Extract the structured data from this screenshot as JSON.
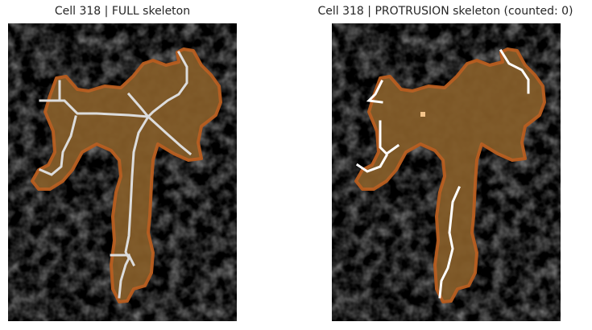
{
  "panels": [
    {
      "title": "Cell 318 | FULL skeleton",
      "skeleton_type": "full"
    },
    {
      "title": "Cell 318 | PROTRUSION skeleton (counted: 0)",
      "skeleton_type": "protrusion",
      "counted": 0
    }
  ],
  "colors": {
    "background": "#000000",
    "cell_fill": "#7a5424",
    "cell_outline": "#b35a1e",
    "skeleton": "#ffffff",
    "seed_marker": "#f4c48a"
  }
}
